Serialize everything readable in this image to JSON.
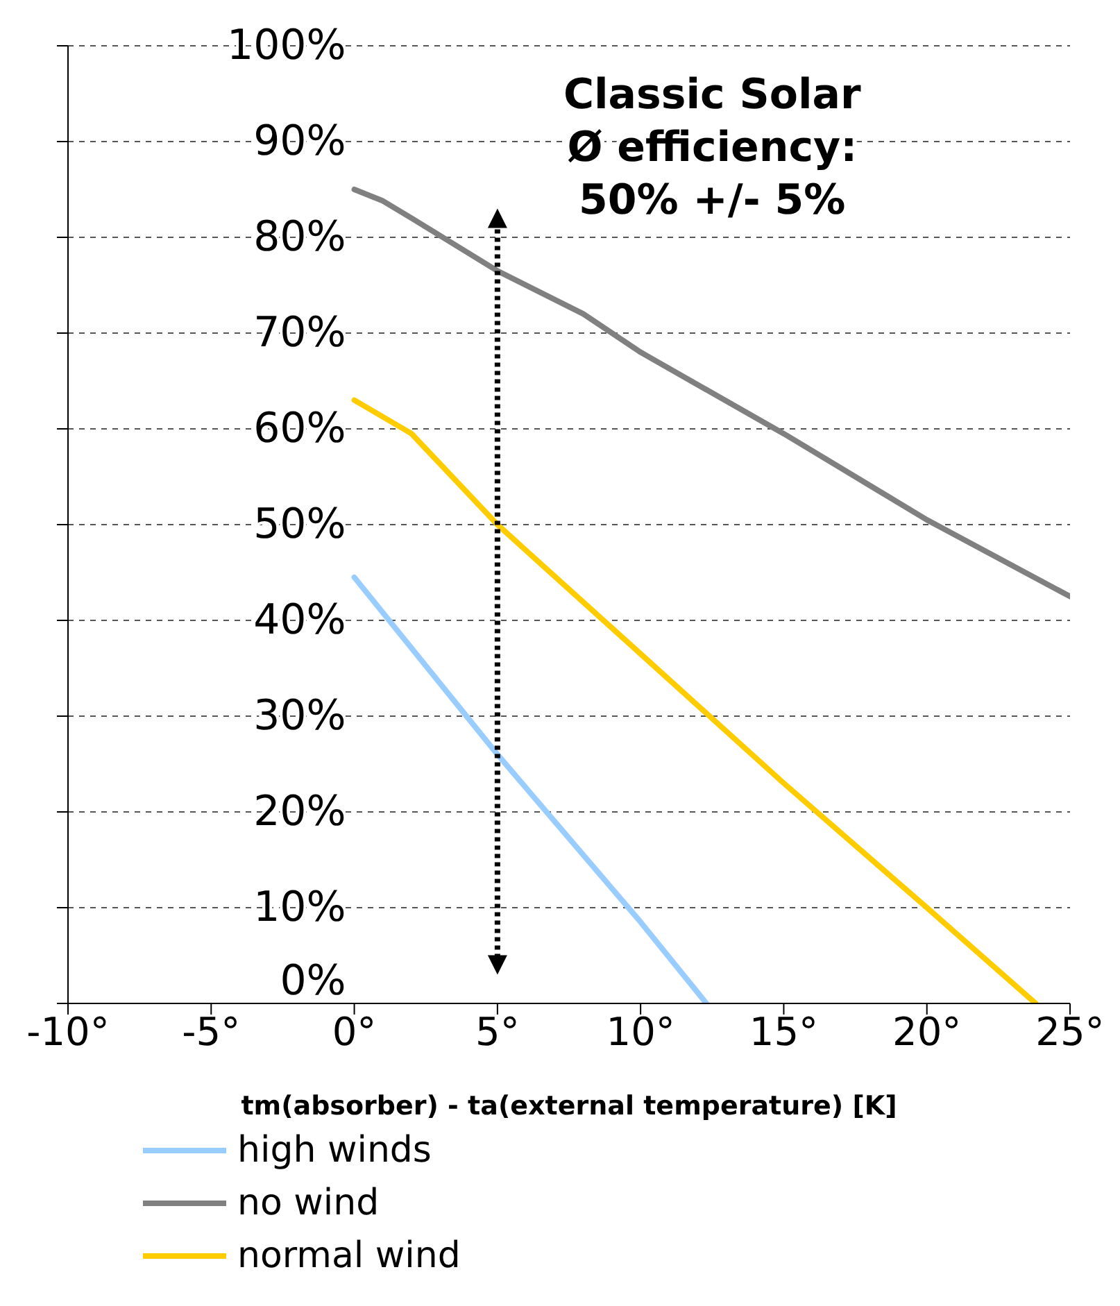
{
  "chart_data": {
    "type": "line",
    "xlabel": "tm(absorber) - ta(external temperature) [K]",
    "annotations": [
      "Classic Solar",
      "Ø efficiency:",
      "50%  +/- 5%"
    ],
    "xlim": [
      -10,
      25
    ],
    "xticks": [
      {
        "value": -10,
        "label": "-10°"
      },
      {
        "value": -5,
        "label": "-5°"
      },
      {
        "value": 0,
        "label": "0°"
      },
      {
        "value": 5,
        "label": "5°"
      },
      {
        "value": 10,
        "label": "10°"
      },
      {
        "value": 15,
        "label": "15°"
      },
      {
        "value": 20,
        "label": "20°"
      },
      {
        "value": 25,
        "label": "25°"
      }
    ],
    "ylim": [
      0,
      100
    ],
    "yticks": [
      {
        "value": 0,
        "label": "0%"
      },
      {
        "value": 10,
        "label": "10%"
      },
      {
        "value": 20,
        "label": "20%"
      },
      {
        "value": 30,
        "label": "30%"
      },
      {
        "value": 40,
        "label": "40%"
      },
      {
        "value": 50,
        "label": "50%"
      },
      {
        "value": 60,
        "label": "60%"
      },
      {
        "value": 70,
        "label": "70%"
      },
      {
        "value": 80,
        "label": "80%"
      },
      {
        "value": 90,
        "label": "90%"
      },
      {
        "value": 100,
        "label": "100%"
      }
    ],
    "grid": "y",
    "legend": "bottom",
    "marker": "none",
    "line_style": "solid",
    "series": [
      {
        "name": "high winds",
        "color": "#99ccff",
        "x": [
          0,
          5,
          10,
          12.3
        ],
        "values": [
          44.5,
          26,
          8.5,
          0
        ]
      },
      {
        "name": "no wind",
        "color": "#808080",
        "x": [
          0,
          1,
          2,
          5,
          8,
          10,
          15,
          20,
          25
        ],
        "values": [
          85,
          83.8,
          82,
          76.5,
          72,
          68,
          59.5,
          50.5,
          42.5
        ]
      },
      {
        "name": "normal wind",
        "color": "#ffcc00",
        "x": [
          0,
          2,
          5,
          10,
          15,
          20,
          23.8
        ],
        "values": [
          63,
          59.5,
          50,
          36.5,
          23,
          10,
          0
        ]
      }
    ]
  }
}
